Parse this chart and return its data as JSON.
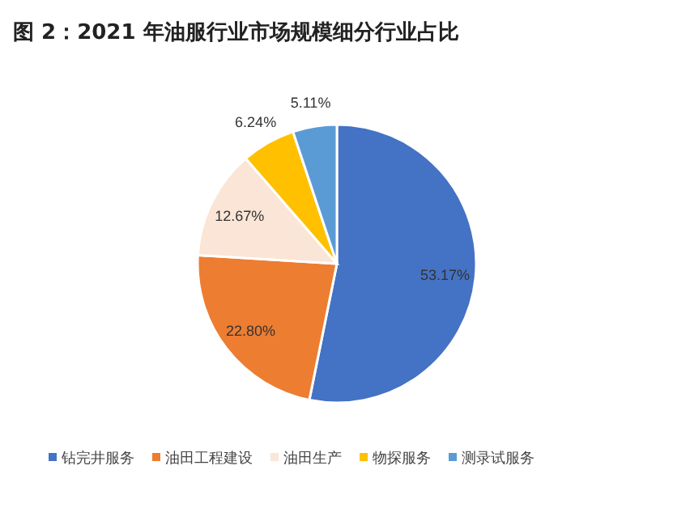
{
  "chart_data": {
    "type": "pie",
    "title": "图 2：2021 年油服行业市场规模细分行业占比",
    "categories": [
      "钻完井服务",
      "油田工程建设",
      "油田生产",
      "物探服务",
      "测录试服务"
    ],
    "values": [
      53.17,
      22.8,
      12.67,
      6.24,
      5.11
    ],
    "value_labels": [
      "53.17%",
      "22.80%",
      "12.67%",
      "6.24%",
      "5.11%"
    ],
    "colors": [
      "#4472c4",
      "#ed7d31",
      "#fbe5d6",
      "#ffc000",
      "#5b9bd5"
    ],
    "legend": "bottom"
  }
}
